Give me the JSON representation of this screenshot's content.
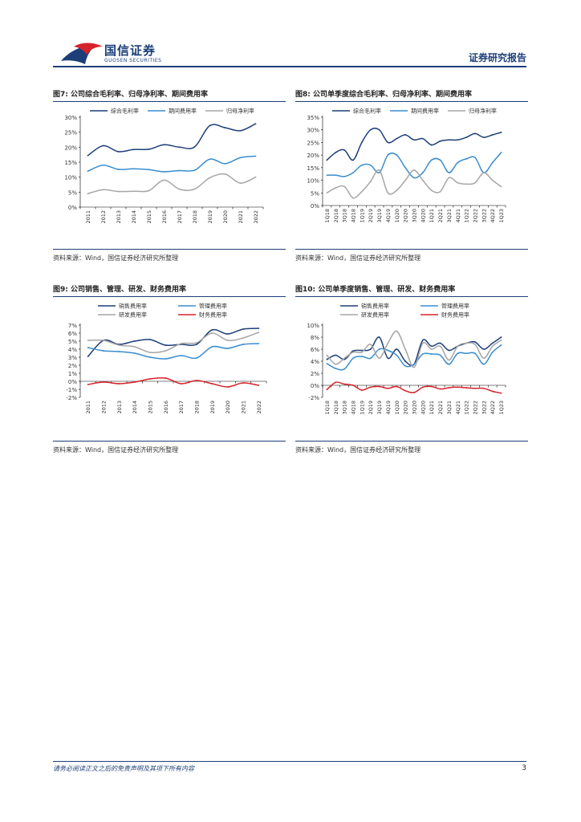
{
  "header": {
    "company_cn": "国信证券",
    "company_en": "GUOSEN SECURITIES",
    "report_type": "证券研究报告"
  },
  "colors": {
    "navy": "#1d3f79",
    "blue": "#3a8dcf",
    "gray": "#a6a6a6",
    "red": "#d6232a"
  },
  "figures": [
    {
      "title": "图7: 公司综合毛利率、归母净利率、期间费用率",
      "source": "资料来源：Wind，国信证券经济研究所整理"
    },
    {
      "title": "图8: 公司单季度综合毛利率、归母净利率、期间费用率",
      "source": "资料来源：Wind，国信证券经济研究所整理"
    },
    {
      "title": "图9: 公司销售、管理、研发、财务费用率",
      "source": "资料来源：Wind，国信证券经济研究所整理"
    },
    {
      "title": "图10: 公司单季度销售、管理、研发、财务费用率",
      "source": "资料来源：Wind，国信证券经济研究所整理"
    }
  ],
  "chart_data": [
    {
      "type": "line",
      "categories": [
        "2011",
        "2012",
        "2013",
        "2014",
        "2015",
        "2016",
        "2017",
        "2018",
        "2019",
        "2020",
        "2021",
        "2022"
      ],
      "ylim": [
        0,
        30
      ],
      "yticks": [
        0,
        5,
        10,
        15,
        20,
        25,
        30
      ],
      "ytick_labels": [
        "0%",
        "5%",
        "10%",
        "15%",
        "20%",
        "25%",
        "30%"
      ],
      "legend_position": "top",
      "series": [
        {
          "name": "综合毛利率",
          "color": "#1d3f79",
          "values": [
            17.2,
            20.5,
            18.5,
            19.2,
            19.3,
            20.8,
            20.0,
            20.1,
            27.2,
            26.5,
            25.5,
            27.8
          ]
        },
        {
          "name": "期间费用率",
          "color": "#3a8dcf",
          "values": [
            12.0,
            14.0,
            12.6,
            12.8,
            12.5,
            11.8,
            12.2,
            12.3,
            16.0,
            14.5,
            16.5,
            17.0
          ]
        },
        {
          "name": "归母净利率",
          "color": "#a6a6a6",
          "values": [
            4.5,
            5.8,
            5.2,
            5.3,
            5.5,
            9.0,
            6.0,
            6.0,
            9.8,
            11.0,
            8.0,
            10.0
          ]
        }
      ]
    },
    {
      "type": "line",
      "categories": [
        "1Q18",
        "2Q18",
        "3Q18",
        "4Q18",
        "1Q19",
        "2Q19",
        "3Q19",
        "4Q19",
        "1Q20",
        "2Q20",
        "3Q20",
        "4Q20",
        "1Q21",
        "2Q21",
        "3Q21",
        "4Q21",
        "1Q22",
        "2Q22",
        "3Q22",
        "4Q22",
        "1Q23"
      ],
      "ylim": [
        0,
        35
      ],
      "yticks": [
        0,
        5,
        10,
        15,
        20,
        25,
        30,
        35
      ],
      "ytick_labels": [
        "0%",
        "5%",
        "10%",
        "15%",
        "20%",
        "25%",
        "30%",
        "35%"
      ],
      "legend_position": "top",
      "series": [
        {
          "name": "综合毛利率",
          "color": "#1d3f79",
          "values": [
            18.0,
            21.0,
            22.0,
            18.0,
            25.0,
            30.0,
            30.0,
            25.0,
            26.5,
            28.0,
            26.0,
            26.5,
            24.0,
            25.5,
            26.0,
            26.0,
            27.0,
            28.5,
            27.0,
            28.0,
            29.0
          ]
        },
        {
          "name": "期间费用率",
          "color": "#3a8dcf",
          "values": [
            12.0,
            12.0,
            11.5,
            13.0,
            16.0,
            16.0,
            13.0,
            20.0,
            20.0,
            15.0,
            11.0,
            13.0,
            18.0,
            18.0,
            13.0,
            17.0,
            18.5,
            19.0,
            13.0,
            17.0,
            21.0
          ]
        },
        {
          "name": "归母净利率",
          "color": "#a6a6a6",
          "values": [
            5.0,
            7.0,
            7.5,
            3.0,
            5.5,
            9.5,
            14.0,
            5.0,
            6.0,
            10.0,
            14.0,
            10.0,
            6.0,
            5.5,
            11.0,
            9.0,
            8.5,
            9.0,
            13.0,
            10.0,
            7.5
          ]
        }
      ]
    },
    {
      "type": "line",
      "categories": [
        "2011",
        "2012",
        "2013",
        "2014",
        "2015",
        "2016",
        "2017",
        "2018",
        "2019",
        "2020",
        "2021",
        "2022"
      ],
      "ylim": [
        -2,
        7
      ],
      "yticks": [
        -2,
        -1,
        0,
        1,
        2,
        3,
        4,
        5,
        6,
        7
      ],
      "ytick_labels": [
        "-2%",
        "-1%",
        "0%",
        "1%",
        "2%",
        "3%",
        "4%",
        "5%",
        "6%",
        "7%"
      ],
      "legend_position": "top",
      "series": [
        {
          "name": "销售费用率",
          "color": "#1d3f79",
          "values": [
            3.1,
            5.1,
            4.6,
            5.0,
            5.2,
            4.5,
            4.6,
            4.6,
            6.4,
            5.9,
            6.5,
            6.6
          ]
        },
        {
          "name": "管理费用率",
          "color": "#3a8dcf",
          "values": [
            4.2,
            3.8,
            3.7,
            3.5,
            3.0,
            2.8,
            3.2,
            2.9,
            4.3,
            4.1,
            4.6,
            4.7
          ]
        },
        {
          "name": "研发费用率",
          "color": "#a6a6a6",
          "values": [
            5.1,
            5.1,
            4.5,
            4.3,
            3.6,
            3.8,
            4.7,
            4.8,
            6.0,
            5.1,
            5.4,
            6.1
          ]
        },
        {
          "name": "财务费用率",
          "color": "#d6232a",
          "values": [
            -0.4,
            -0.1,
            -0.3,
            -0.1,
            0.3,
            0.4,
            -0.3,
            0.1,
            -0.3,
            -0.7,
            -0.2,
            -0.5
          ]
        }
      ]
    },
    {
      "type": "line",
      "categories": [
        "1Q18",
        "2Q18",
        "3Q18",
        "4Q18",
        "1Q19",
        "2Q19",
        "3Q19",
        "4Q19",
        "1Q20",
        "2Q20",
        "3Q20",
        "4Q20",
        "1Q21",
        "2Q21",
        "3Q21",
        "4Q21",
        "1Q22",
        "2Q22",
        "3Q22",
        "4Q22",
        "1Q23"
      ],
      "ylim": [
        -2,
        10
      ],
      "yticks": [
        -2,
        0,
        2,
        4,
        6,
        8,
        10
      ],
      "ytick_labels": [
        "-2%",
        "0%",
        "2%",
        "4%",
        "6%",
        "8%",
        "10%"
      ],
      "legend_position": "top",
      "series": [
        {
          "name": "销售费用率",
          "color": "#1d3f79",
          "values": [
            4.3,
            5.0,
            4.3,
            5.7,
            5.8,
            6.0,
            8.0,
            4.5,
            6.0,
            4.0,
            3.5,
            7.5,
            6.5,
            7.0,
            5.8,
            6.5,
            7.0,
            7.2,
            6.0,
            7.0,
            8.0
          ]
        },
        {
          "name": "管理费用率",
          "color": "#3a8dcf",
          "values": [
            3.6,
            2.8,
            2.7,
            4.5,
            4.8,
            4.5,
            6.0,
            5.8,
            5.0,
            3.2,
            3.5,
            5.2,
            5.2,
            5.0,
            3.5,
            5.3,
            5.3,
            5.3,
            3.5,
            5.5,
            6.7
          ]
        },
        {
          "name": "研发费用率",
          "color": "#a6a6a6",
          "values": [
            5.0,
            3.5,
            4.5,
            5.5,
            5.5,
            6.8,
            4.5,
            7.0,
            9.0,
            6.0,
            3.0,
            7.0,
            6.0,
            6.5,
            4.2,
            6.5,
            7.0,
            6.8,
            4.5,
            6.5,
            7.5
          ]
        },
        {
          "name": "财务费用率",
          "color": "#d6232a",
          "values": [
            -0.7,
            0.5,
            0.2,
            0.0,
            -0.8,
            -0.3,
            -0.2,
            -0.5,
            -0.2,
            -0.9,
            -1.2,
            -0.3,
            -0.2,
            -0.6,
            -0.4,
            -0.3,
            -0.4,
            -0.5,
            -0.5,
            -1.0,
            -1.3
          ]
        }
      ]
    }
  ],
  "footer": {
    "disclaimer": "请务必阅读正文之后的免责声明及其项下所有内容",
    "page_number": "3"
  }
}
